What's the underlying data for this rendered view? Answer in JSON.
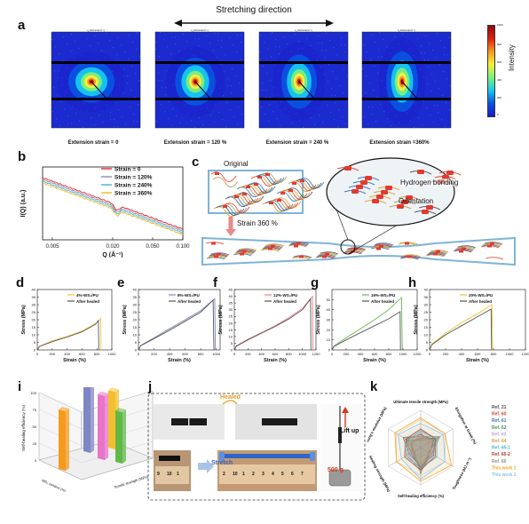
{
  "panel_a": {
    "label": "a",
    "arrow_label": "Stretching direction",
    "colorbar_label": "Intensity",
    "colorbar_max": "1000",
    "colorbar_ticks": [
      "800",
      "600",
      "400",
      "200",
      "0"
    ],
    "captions": [
      "Extension strain = 0",
      "Extension strain = 120 %",
      "Extension strain = 240 %",
      "Extension strain =360%"
    ],
    "palette": [
      "#1a1acc",
      "#0a52e0",
      "#16c8f0",
      "#7af07a",
      "#f7f03c",
      "#f59a20",
      "#e02010",
      "#8a0d0d"
    ]
  },
  "panel_b": {
    "label": "b",
    "chart_data": {
      "type": "line",
      "xlabel": "Q (Å⁻¹)",
      "ylabel": "I(Q) (a.u.)",
      "xscale": "log",
      "xlim": [
        0.004,
        0.1
      ],
      "xticks": [
        0.005,
        0.02,
        0.05,
        0.1
      ],
      "xtick_labels": [
        "0.005",
        "0.020",
        "0.050",
        "0.100"
      ],
      "legend_loc": "top-right",
      "series": [
        {
          "name": "Strain = 0",
          "color": "#e8262a",
          "offset": 0
        },
        {
          "name": "Strain = 120%",
          "color": "#8e8fb3",
          "offset": 2
        },
        {
          "name": "Strain = 240%",
          "color": "#43b3cc",
          "offset": 4
        },
        {
          "name": "Strain = 360%",
          "color": "#f0b81e",
          "offset": 6
        }
      ]
    }
  },
  "panel_c": {
    "label": "c",
    "original_label": "Original",
    "strain_label": "Strain 360 %",
    "zoom_labels": [
      "Hydrogen bonding",
      "Orientation"
    ]
  },
  "panel_dh": [
    {
      "label": "d",
      "legend": [
        "4%-WS₂/PU",
        "After healed"
      ],
      "colors": [
        "#f5c431",
        "#555555"
      ],
      "xticks": [
        "0",
        "200",
        "400",
        "600",
        "800",
        "1000"
      ],
      "yticks": [
        "0",
        "5",
        "10",
        "15",
        "20",
        "25",
        "30",
        "35",
        "40"
      ],
      "chart_data": {
        "type": "line",
        "xlabel": "Strain (%)",
        "ylabel": "Stress (MPa)",
        "xlim": [
          0,
          1000
        ],
        "ylim": [
          0,
          40
        ],
        "series": [
          {
            "name": "4%-WS₂/PU",
            "x": [
              0,
              30,
              200,
              400,
              600,
              800,
              850,
              855
            ],
            "y": [
              0,
              2.5,
              6,
              9,
              12.5,
              18,
              21,
              0
            ]
          },
          {
            "name": "After healed",
            "x": [
              0,
              30,
              200,
              400,
              600,
              780,
              820,
              825
            ],
            "y": [
              0,
              2.3,
              5.5,
              8.5,
              12,
              17,
              19.5,
              0
            ]
          }
        ]
      }
    },
    {
      "label": "e",
      "legend": [
        "8%-WS₂/PU",
        "After healed"
      ],
      "colors": [
        "#7f86c5",
        "#555555"
      ],
      "xticks": [
        "0",
        "200",
        "400",
        "600",
        "800",
        "1000"
      ],
      "yticks": [
        "0",
        "5",
        "10",
        "15",
        "20",
        "25",
        "30",
        "35",
        "40"
      ],
      "chart_data": {
        "type": "line",
        "xlabel": "Strain (%)",
        "ylabel": "Stress (MPa)",
        "xlim": [
          0,
          1050
        ],
        "ylim": [
          0,
          40
        ],
        "series": [
          {
            "name": "8%-WS₂/PU",
            "x": [
              0,
              30,
              200,
              400,
              600,
              800,
              980,
              990
            ],
            "y": [
              0,
              3,
              8,
              14,
              20,
              26,
              34,
              0
            ]
          },
          {
            "name": "After healed",
            "x": [
              0,
              30,
              200,
              400,
              600,
              800,
              960,
              970
            ],
            "y": [
              0,
              2.8,
              7.5,
              13,
              19,
              25,
              33,
              0
            ]
          }
        ]
      }
    },
    {
      "label": "f",
      "legend": [
        "12%-WS₂/PU",
        "After healed"
      ],
      "colors": [
        "#e8828a",
        "#555555"
      ],
      "xticks": [
        "0",
        "200",
        "400",
        "600",
        "800",
        "1000",
        "1200"
      ],
      "yticks": [
        "0",
        "5",
        "10",
        "15",
        "20",
        "25",
        "30",
        "35",
        "40",
        "45"
      ],
      "chart_data": {
        "type": "line",
        "xlabel": "Strain (%)",
        "ylabel": "Stress (MPa)",
        "xlim": [
          0,
          1200
        ],
        "ylim": [
          0,
          45
        ],
        "series": [
          {
            "name": "12%-WS₂/PU",
            "x": [
              0,
              30,
              200,
              400,
              600,
              800,
              1000,
              1150,
              1155
            ],
            "y": [
              0,
              3,
              8,
              13,
              18,
              24,
              31,
              40,
              0
            ]
          },
          {
            "name": "After healed",
            "x": [
              0,
              30,
              200,
              400,
              600,
              800,
              1000,
              1120,
              1125
            ],
            "y": [
              0,
              2.8,
              7.5,
              12.5,
              17.5,
              23,
              30,
              38,
              0
            ]
          }
        ]
      }
    },
    {
      "label": "g",
      "legend": [
        "16%-WS₂/PU",
        "After healed"
      ],
      "colors": [
        "#62b847",
        "#555555"
      ],
      "xticks": [
        "0",
        "200",
        "400",
        "600",
        "800",
        "1000",
        "1200"
      ],
      "yticks": [
        "0",
        "10",
        "20",
        "30",
        "40",
        "50"
      ],
      "chart_data": {
        "type": "line",
        "xlabel": "Strain (%)",
        "ylabel": "Stress (MPa)",
        "xlim": [
          0,
          1200
        ],
        "ylim": [
          0,
          60
        ],
        "series": [
          {
            "name": "16%-WS₂/PU",
            "x": [
              0,
              30,
              200,
              400,
              600,
              800,
              980,
              990
            ],
            "y": [
              0,
              4,
              12,
              21,
              30,
              40,
              52,
              0
            ]
          },
          {
            "name": "After healed",
            "x": [
              0,
              30,
              200,
              400,
              600,
              800,
              960,
              965
            ],
            "y": [
              0,
              3.5,
              10,
              17,
              24,
              31,
              38,
              0
            ]
          }
        ]
      }
    },
    {
      "label": "h",
      "legend": [
        "20%-WS₂/PU",
        "After healed"
      ],
      "colors": [
        "#e8c330",
        "#555555"
      ],
      "xticks": [
        "0",
        "200",
        "400",
        "600",
        "800",
        "1000",
        "1200"
      ],
      "yticks": [
        "0",
        "5",
        "10",
        "15",
        "20",
        "25",
        "30",
        "35",
        "40"
      ],
      "chart_data": {
        "type": "line",
        "xlabel": "Strain (%)",
        "ylabel": "Stress (MPa)",
        "xlim": [
          0,
          1200
        ],
        "ylim": [
          0,
          40
        ],
        "series": [
          {
            "name": "20%-WS₂/PU",
            "x": [
              0,
              30,
              200,
              400,
              600,
              780,
              790
            ],
            "y": [
              0,
              4,
              11,
              18,
              24,
              30,
              0
            ]
          },
          {
            "name": "After healed",
            "x": [
              0,
              30,
              200,
              400,
              600,
              770,
              775
            ],
            "y": [
              0,
              3.5,
              10,
              16,
              22,
              27,
              0
            ]
          }
        ]
      }
    }
  ],
  "panel_i": {
    "label": "i",
    "chart_data": {
      "type": "bar",
      "zlabel": "Self-healing efficiency (%)",
      "xlabel": "WS₂ content (%)",
      "ylabel": "Tensile strength (MPa)",
      "zticks": [
        "0",
        "25",
        "50",
        "75",
        "100"
      ],
      "categories": [
        "4%",
        "8%",
        "12%",
        "16%",
        "20%"
      ],
      "values": [
        88,
        98,
        95,
        76,
        85
      ],
      "colors": [
        "#f59a1c",
        "#7f86c5",
        "#e873c9",
        "#62b847",
        "#f2c02c"
      ]
    }
  },
  "panel_j": {
    "label": "j",
    "healed_label": "Healed",
    "stretch_label": "Stretch",
    "lift_label": "Lift up",
    "weight_label": "500 g",
    "ruler_numbers": [
      "9",
      "10",
      "1",
      "2",
      "10",
      "1",
      "2",
      "3",
      "4",
      "5",
      "6",
      "7"
    ]
  },
  "panel_k": {
    "label": "k",
    "chart_data": {
      "type": "radar",
      "axes": [
        "Ultimate tensile strength (MPa)",
        "Elongation at break (%)",
        "Toughness (MJ m⁻³)",
        "Self-healing efficiency (%)",
        "Healing strength (MPa)",
        "Young's modulus (MPa)"
      ],
      "series": [
        {
          "name": "Ref. 21",
          "color": "#4d4d4d",
          "values": [
            0.35,
            0.4,
            0.3,
            0.55,
            0.3,
            0.45
          ]
        },
        {
          "name": "Ref. 60",
          "color": "#d9412b",
          "values": [
            0.25,
            0.5,
            0.35,
            0.6,
            0.25,
            0.3
          ]
        },
        {
          "name": "Ref. 61",
          "color": "#3d72b4",
          "values": [
            0.3,
            0.45,
            0.4,
            0.5,
            0.35,
            0.55
          ]
        },
        {
          "name": "Ref. 62",
          "color": "#3a9b52",
          "values": [
            0.2,
            0.55,
            0.25,
            0.7,
            0.2,
            0.4
          ]
        },
        {
          "name": "Ref. 63",
          "color": "#c2a0d4",
          "values": [
            0.4,
            0.3,
            0.35,
            0.65,
            0.4,
            0.35
          ]
        },
        {
          "name": "Ref. 64",
          "color": "#e09a3c",
          "values": [
            0.3,
            0.35,
            0.3,
            0.45,
            0.3,
            0.5
          ]
        },
        {
          "name": "Ref. 65-1",
          "color": "#4bb6c6",
          "values": [
            0.45,
            0.5,
            0.5,
            0.55,
            0.45,
            0.4
          ]
        },
        {
          "name": "Ref. 65-2",
          "color": "#b03a2e",
          "values": [
            0.5,
            0.45,
            0.45,
            0.6,
            0.5,
            0.45
          ]
        },
        {
          "name": "Ref. 66",
          "color": "#8f8f8f",
          "values": [
            0.3,
            0.6,
            0.35,
            0.5,
            0.3,
            0.3
          ]
        },
        {
          "name": "This work 1",
          "color": "#f5a623",
          "values": [
            0.8,
            0.75,
            0.95,
            0.9,
            0.75,
            0.8
          ]
        },
        {
          "name": "This work 2",
          "color": "#8bc3e8",
          "values": [
            0.65,
            0.7,
            0.75,
            0.85,
            0.6,
            0.7
          ]
        }
      ],
      "rings": 4
    }
  }
}
